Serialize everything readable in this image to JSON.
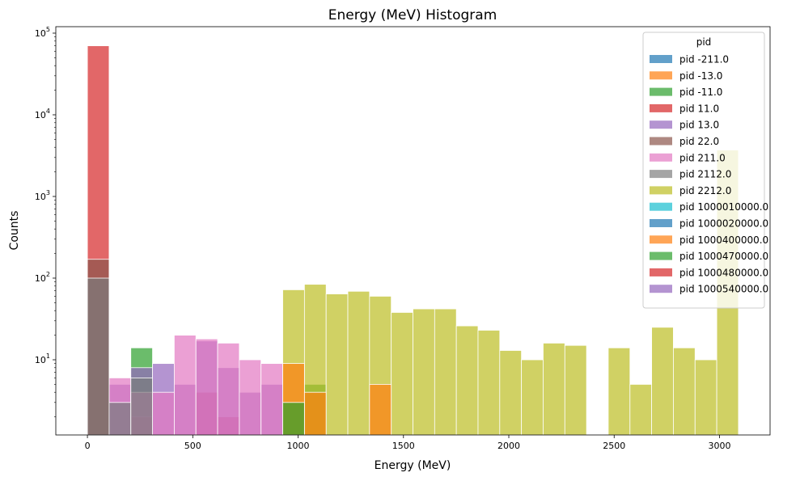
{
  "chart_data": {
    "type": "bar",
    "title": "Energy (MeV) Histogram",
    "xlabel": "Energy (MeV)",
    "ylabel": "Counts",
    "xlim": [
      -150,
      3240
    ],
    "ylim": [
      1.2,
      120000
    ],
    "yscale": "log",
    "grid": false,
    "legend_placement": "top-right",
    "legend_title": "pid",
    "bin_width": 103,
    "xticks": [
      {
        "value": 0,
        "label": "0"
      },
      {
        "value": 500,
        "label": "500"
      },
      {
        "value": 1000,
        "label": "1000"
      },
      {
        "value": 1500,
        "label": "1500"
      },
      {
        "value": 2000,
        "label": "2000"
      },
      {
        "value": 2500,
        "label": "2500"
      },
      {
        "value": 3000,
        "label": "3000"
      }
    ],
    "yticks": [
      {
        "value": 10,
        "base": "10",
        "exp": "1"
      },
      {
        "value": 100,
        "base": "10",
        "exp": "2"
      },
      {
        "value": 1000,
        "base": "10",
        "exp": "3"
      },
      {
        "value": 10000,
        "base": "10",
        "exp": "4"
      },
      {
        "value": 100000,
        "base": "10",
        "exp": "5"
      }
    ],
    "series": [
      {
        "name": "pid -211.0",
        "color": "#1f77b4",
        "bins": [
          [
            0,
            100
          ],
          [
            103,
            3
          ],
          [
            206,
            6
          ]
        ]
      },
      {
        "name": "pid -13.0",
        "color": "#ff7f0e",
        "bins": []
      },
      {
        "name": "pid -11.0",
        "color": "#2ca02c",
        "bins": [
          [
            206,
            14
          ],
          [
            1030,
            5
          ]
        ]
      },
      {
        "name": "pid 11.0",
        "color": "#d62728",
        "bins": [
          [
            0,
            70000
          ],
          [
            206,
            2
          ],
          [
            515,
            4
          ],
          [
            618,
            2
          ]
        ]
      },
      {
        "name": "pid 13.0",
        "color": "#9467bd",
        "bins": [
          [
            103,
            5
          ],
          [
            206,
            8
          ],
          [
            309,
            9
          ],
          [
            412,
            5
          ],
          [
            515,
            17
          ],
          [
            618,
            8
          ],
          [
            721,
            4
          ],
          [
            824,
            5
          ]
        ]
      },
      {
        "name": "pid 22.0",
        "color": "#8c564b",
        "bins": [
          [
            0,
            170
          ]
        ]
      },
      {
        "name": "pid 211.0",
        "color": "#e377c2",
        "bins": [
          [
            103,
            6
          ],
          [
            206,
            4
          ],
          [
            309,
            4
          ],
          [
            412,
            20
          ],
          [
            515,
            18
          ],
          [
            618,
            16
          ],
          [
            721,
            10
          ],
          [
            824,
            9
          ]
        ]
      },
      {
        "name": "pid 2112.0",
        "color": "#7f7f7f",
        "bins": [
          [
            0,
            100
          ],
          [
            103,
            3
          ],
          [
            206,
            6
          ]
        ]
      },
      {
        "name": "pid 2212.0",
        "color": "#bcbd22",
        "bins": [
          [
            927,
            72
          ],
          [
            1030,
            84
          ],
          [
            1133,
            64
          ],
          [
            1236,
            69
          ],
          [
            1339,
            60
          ],
          [
            1442,
            38
          ],
          [
            1545,
            42
          ],
          [
            1648,
            42
          ],
          [
            1751,
            26
          ],
          [
            1854,
            23
          ],
          [
            1957,
            13
          ],
          [
            2060,
            10
          ],
          [
            2163,
            16
          ],
          [
            2266,
            15
          ],
          [
            2472,
            14
          ],
          [
            2575,
            5
          ],
          [
            2678,
            25
          ],
          [
            2781,
            14
          ],
          [
            2884,
            10
          ],
          [
            2987,
            3700
          ]
        ]
      },
      {
        "name": "pid 1000010000.0",
        "color": "#17becf",
        "bins": []
      },
      {
        "name": "pid 1000020000.0",
        "color": "#1f77b4",
        "bins": []
      },
      {
        "name": "pid 1000400000.0",
        "color": "#ff7f0e",
        "bins": [
          [
            927,
            9
          ],
          [
            1030,
            4
          ],
          [
            1339,
            5
          ]
        ]
      },
      {
        "name": "pid 1000470000.0",
        "color": "#2ca02c",
        "bins": [
          [
            927,
            3
          ]
        ]
      },
      {
        "name": "pid 1000480000.0",
        "color": "#d62728",
        "bins": []
      },
      {
        "name": "pid 1000540000.0",
        "color": "#9467bd",
        "bins": []
      }
    ]
  }
}
